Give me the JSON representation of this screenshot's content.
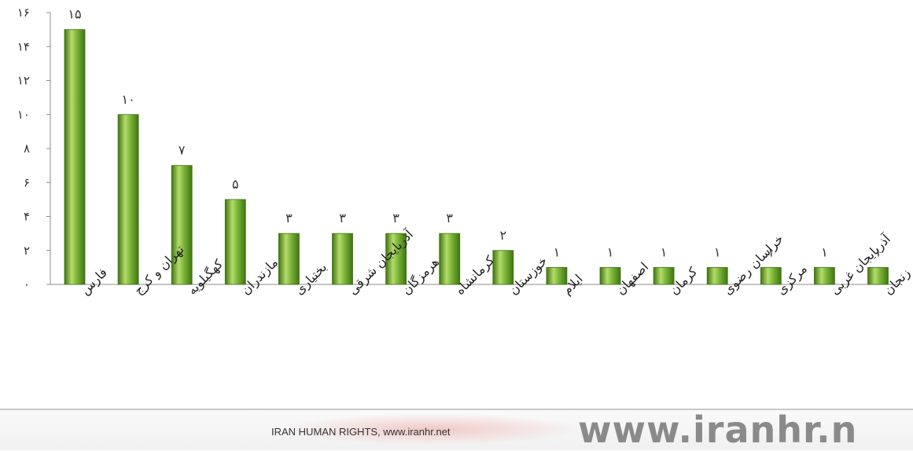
{
  "chart_data": {
    "type": "bar",
    "categories": [
      "فارس",
      "تهران و کرج",
      "کهگیلویه",
      "مازندران",
      "بختیاری",
      "آذربایجان شرقی",
      "هرمزگان",
      "کرمانشاه",
      "خوزستان",
      "ایلام",
      "اصفهان",
      "کرمان",
      "خراسان رضوی",
      "مرکزی",
      "آذربایجان غربی",
      "زنجان"
    ],
    "values": [
      15,
      10,
      7,
      5,
      3,
      3,
      3,
      3,
      2,
      1,
      1,
      1,
      1,
      1,
      1,
      1
    ],
    "value_labels": [
      "۱۵",
      "۱۰",
      "۷",
      "۵",
      "۳",
      "۳",
      "۳",
      "۳",
      "۲",
      "۱",
      "۱",
      "۱",
      "۱",
      "۱",
      "۱",
      "۱"
    ],
    "ylim": [
      0,
      16
    ],
    "yticks": [
      0,
      2,
      4,
      6,
      8,
      10,
      12,
      14,
      16
    ],
    "ytick_labels": [
      "۰",
      "۲",
      "۴",
      "۶",
      "۸",
      "۱۰",
      "۱۲",
      "۱۴",
      "۱۶"
    ],
    "grid": false,
    "colors": {
      "bar": "#6fa52e",
      "bar_light": "#b5dc6a",
      "bar_dark": "#3f7412",
      "axis": "#8c8c8c"
    }
  },
  "footer": {
    "credit": "IRAN HUMAN RIGHTS, www.iranhr.net",
    "site_text": "www.iranhr.n"
  }
}
